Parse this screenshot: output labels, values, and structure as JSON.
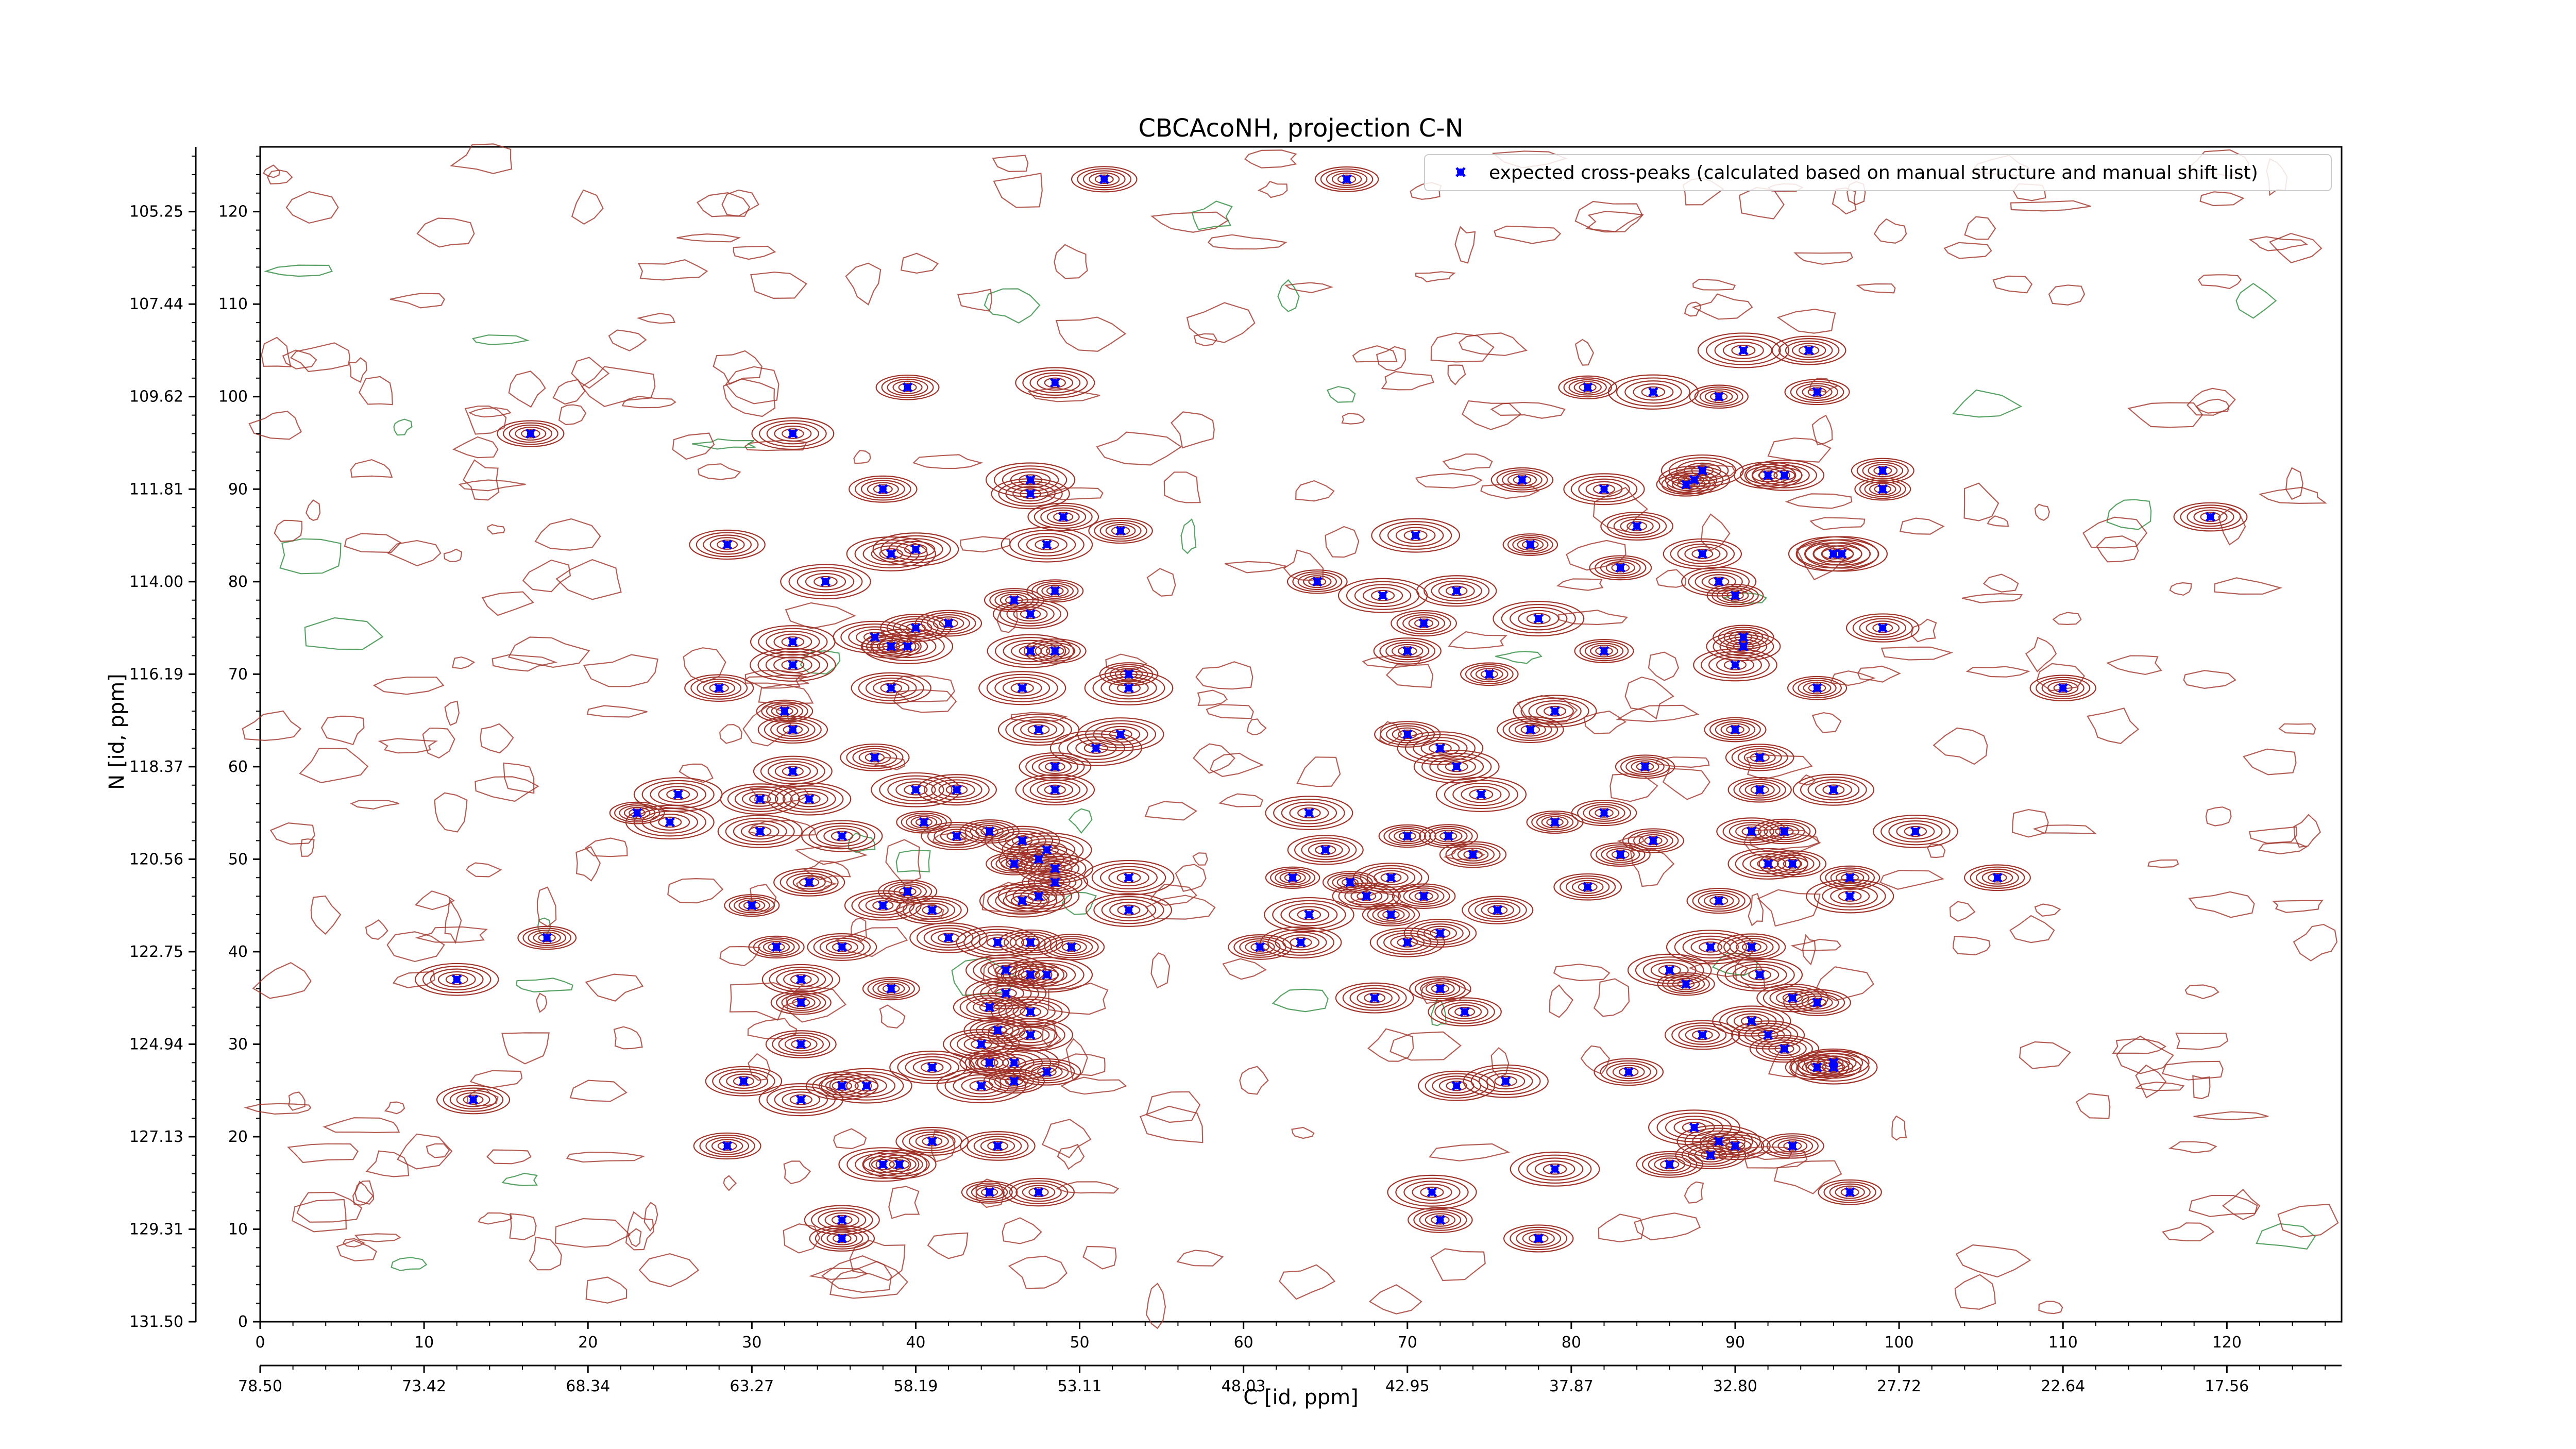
{
  "chart_data": {
    "type": "scatter",
    "title": "CBCAcoNH, projection C-N",
    "xlabel_top": "",
    "xlabel": "C [id, ppm]",
    "ylabel": "N [id, ppm]",
    "xlim": [
      0,
      127
    ],
    "ylim": [
      0,
      127
    ],
    "x_index_ticks": [
      "0",
      "10",
      "20",
      "30",
      "40",
      "50",
      "60",
      "70",
      "80",
      "90",
      "100",
      "110",
      "120"
    ],
    "x_ppm_ticks": [
      "78.50",
      "73.42",
      "68.34",
      "63.27",
      "58.19",
      "53.11",
      "48.03",
      "42.95",
      "37.87",
      "32.80",
      "27.72",
      "22.64",
      "17.56"
    ],
    "y_index_ticks": [
      "0",
      "10",
      "20",
      "30",
      "40",
      "50",
      "60",
      "70",
      "80",
      "90",
      "100",
      "110",
      "120"
    ],
    "y_ppm_ticks": [
      "131.50",
      "129.31",
      "127.13",
      "124.94",
      "122.75",
      "120.56",
      "118.37",
      "116.19",
      "114.00",
      "111.81",
      "109.62",
      "107.44",
      "105.25"
    ],
    "grid": false,
    "legend": {
      "position": "top-right",
      "entries": [
        {
          "label": "expected cross-peaks (calculated based on manual structure and manual shift list)",
          "color": "#0000ff",
          "marker": "x"
        }
      ]
    },
    "colors": {
      "contour_positive": "#a0342a",
      "contour_negative": "#2e8b3e",
      "marker": "#0000ff"
    },
    "series": [
      {
        "name": "expected cross-peaks (calculated based on manual structure and manual shift list)",
        "points": [
          [
            51.5,
            123.5
          ],
          [
            66.3,
            123.5
          ],
          [
            16.5,
            96
          ],
          [
            32.5,
            96
          ],
          [
            39.5,
            101
          ],
          [
            48.5,
            101.5
          ],
          [
            38,
            90
          ],
          [
            47,
            91
          ],
          [
            47,
            89.5
          ],
          [
            49,
            87
          ],
          [
            52.5,
            85.5
          ],
          [
            48,
            84
          ],
          [
            28.5,
            84
          ],
          [
            38.5,
            83
          ],
          [
            40,
            83.5
          ],
          [
            34.5,
            80
          ],
          [
            46,
            78
          ],
          [
            48.5,
            79
          ],
          [
            47,
            76.5
          ],
          [
            42,
            75.5
          ],
          [
            40,
            75
          ],
          [
            37.5,
            74
          ],
          [
            38.5,
            73
          ],
          [
            39.5,
            73
          ],
          [
            32.5,
            73.5
          ],
          [
            32.5,
            71
          ],
          [
            47,
            72.5
          ],
          [
            48.5,
            72.5
          ],
          [
            53,
            70
          ],
          [
            53,
            68.5
          ],
          [
            46.5,
            68.5
          ],
          [
            38.5,
            68.5
          ],
          [
            28,
            68.5
          ],
          [
            32,
            66
          ],
          [
            32.5,
            64
          ],
          [
            47.5,
            64
          ],
          [
            52.5,
            63.5
          ],
          [
            51,
            62
          ],
          [
            37.5,
            61
          ],
          [
            48.5,
            60
          ],
          [
            32.5,
            59.5
          ],
          [
            48.5,
            57.5
          ],
          [
            40,
            57.5
          ],
          [
            42.5,
            57.5
          ],
          [
            25.5,
            57
          ],
          [
            30.5,
            56.5
          ],
          [
            33.5,
            56.5
          ],
          [
            23,
            55
          ],
          [
            25,
            54
          ],
          [
            40.5,
            54
          ],
          [
            30.5,
            53
          ],
          [
            35.5,
            52.5
          ],
          [
            42.5,
            52.5
          ],
          [
            44.5,
            53
          ],
          [
            46.5,
            52
          ],
          [
            48,
            51
          ],
          [
            47.5,
            50
          ],
          [
            46,
            49.5
          ],
          [
            48.5,
            49
          ],
          [
            48.5,
            47.5
          ],
          [
            47.5,
            46
          ],
          [
            46.5,
            45.5
          ],
          [
            39.5,
            46.5
          ],
          [
            33.5,
            47.5
          ],
          [
            38,
            45
          ],
          [
            41,
            44.5
          ],
          [
            30,
            45
          ],
          [
            53,
            48
          ],
          [
            53,
            44.5
          ],
          [
            42,
            41.5
          ],
          [
            45,
            41
          ],
          [
            47,
            41
          ],
          [
            49.5,
            40.5
          ],
          [
            31.5,
            40.5
          ],
          [
            35.5,
            40.5
          ],
          [
            17.5,
            41.5
          ],
          [
            12,
            37
          ],
          [
            45.5,
            38
          ],
          [
            47,
            37.5
          ],
          [
            48,
            37.5
          ],
          [
            33,
            37
          ],
          [
            33,
            34.5
          ],
          [
            38.5,
            36
          ],
          [
            45.5,
            35.5
          ],
          [
            44.5,
            34
          ],
          [
            47,
            33.5
          ],
          [
            45,
            31.5
          ],
          [
            47,
            31
          ],
          [
            44,
            30
          ],
          [
            33,
            30
          ],
          [
            44.5,
            28
          ],
          [
            46,
            28
          ],
          [
            48,
            27
          ],
          [
            41,
            27.5
          ],
          [
            29.5,
            26
          ],
          [
            44,
            25.5
          ],
          [
            35.5,
            25.5
          ],
          [
            37,
            25.5
          ],
          [
            33,
            24
          ],
          [
            13,
            24
          ],
          [
            46,
            26
          ],
          [
            28.5,
            19
          ],
          [
            41,
            19.5
          ],
          [
            45,
            19
          ],
          [
            38,
            17
          ],
          [
            39,
            17
          ],
          [
            44.5,
            14
          ],
          [
            47.5,
            14
          ],
          [
            35.5,
            11
          ],
          [
            35.5,
            9
          ],
          [
            81,
            101
          ],
          [
            85,
            100.5
          ],
          [
            89,
            100
          ],
          [
            90.5,
            105
          ],
          [
            94.5,
            105
          ],
          [
            95,
            100.5
          ],
          [
            77,
            91
          ],
          [
            82,
            90
          ],
          [
            87,
            90.5
          ],
          [
            87.5,
            91
          ],
          [
            88,
            92
          ],
          [
            92,
            91.5
          ],
          [
            93,
            91.5
          ],
          [
            99,
            92
          ],
          [
            99,
            90
          ],
          [
            70.5,
            85
          ],
          [
            84,
            86
          ],
          [
            77.5,
            84
          ],
          [
            88,
            83
          ],
          [
            96,
            83
          ],
          [
            96.5,
            83
          ],
          [
            83,
            81.5
          ],
          [
            89,
            80
          ],
          [
            90,
            78.5
          ],
          [
            64.5,
            80
          ],
          [
            68.5,
            78.5
          ],
          [
            73,
            79
          ],
          [
            71,
            75.5
          ],
          [
            70,
            72.5
          ],
          [
            78,
            76
          ],
          [
            75,
            70
          ],
          [
            82,
            72.5
          ],
          [
            90.5,
            74
          ],
          [
            90.5,
            73
          ],
          [
            90,
            71
          ],
          [
            95,
            68.5
          ],
          [
            99,
            75
          ],
          [
            110,
            68.5
          ],
          [
            119,
            87
          ],
          [
            79,
            66
          ],
          [
            70,
            63.5
          ],
          [
            72,
            62
          ],
          [
            73,
            60
          ],
          [
            77.5,
            64
          ],
          [
            74.5,
            57
          ],
          [
            84.5,
            60
          ],
          [
            90,
            64
          ],
          [
            91.5,
            61
          ],
          [
            91.5,
            57.5
          ],
          [
            96,
            57.5
          ],
          [
            64,
            55
          ],
          [
            79,
            54
          ],
          [
            82,
            55
          ],
          [
            85,
            52
          ],
          [
            83,
            50.5
          ],
          [
            70,
            52.5
          ],
          [
            72.5,
            52.5
          ],
          [
            74,
            50.5
          ],
          [
            91,
            53
          ],
          [
            93,
            53
          ],
          [
            92,
            49.5
          ],
          [
            93.5,
            49.5
          ],
          [
            101,
            53
          ],
          [
            97,
            48
          ],
          [
            97,
            46
          ],
          [
            106,
            48
          ],
          [
            65,
            51
          ],
          [
            63,
            48
          ],
          [
            66.5,
            47.5
          ],
          [
            69,
            48
          ],
          [
            71,
            46
          ],
          [
            64,
            44
          ],
          [
            67.5,
            46
          ],
          [
            69,
            44
          ],
          [
            75.5,
            44.5
          ],
          [
            81,
            47
          ],
          [
            89,
            45.5
          ],
          [
            61,
            40.5
          ],
          [
            63.5,
            41
          ],
          [
            70,
            41
          ],
          [
            72,
            42
          ],
          [
            88.5,
            40.5
          ],
          [
            91,
            40.5
          ],
          [
            86,
            38
          ],
          [
            91.5,
            37.5
          ],
          [
            87,
            36.5
          ],
          [
            72,
            36
          ],
          [
            68,
            35
          ],
          [
            73.5,
            33.5
          ],
          [
            93.5,
            35
          ],
          [
            95,
            34.5
          ],
          [
            91,
            32.5
          ],
          [
            88,
            31
          ],
          [
            92,
            31
          ],
          [
            93,
            29.5
          ],
          [
            95,
            27.5
          ],
          [
            96,
            27.5
          ],
          [
            96,
            28
          ],
          [
            83.5,
            27
          ],
          [
            73,
            25.5
          ],
          [
            76,
            26
          ],
          [
            87.5,
            21
          ],
          [
            89,
            19.5
          ],
          [
            90,
            19
          ],
          [
            88.5,
            18
          ],
          [
            93.5,
            19
          ],
          [
            86,
            17
          ],
          [
            79,
            16.5
          ],
          [
            97,
            14
          ],
          [
            71.5,
            14
          ],
          [
            72,
            11
          ],
          [
            78,
            9
          ]
        ]
      }
    ]
  }
}
